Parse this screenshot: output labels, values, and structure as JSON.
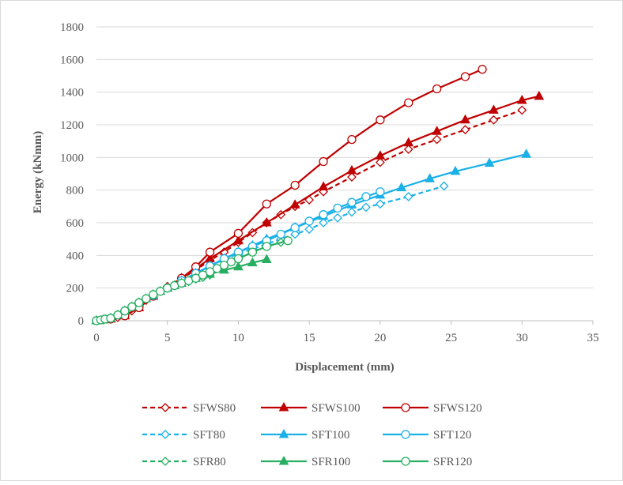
{
  "chart_data": {
    "type": "line",
    "xlabel": "Displacement (mm)",
    "ylabel": "Energy (kNmm)",
    "xlim": [
      0,
      35
    ],
    "ylim": [
      0,
      1800
    ],
    "xticks": [
      0,
      5,
      10,
      15,
      20,
      25,
      30,
      35
    ],
    "yticks": [
      0,
      200,
      400,
      600,
      800,
      1000,
      1200,
      1400,
      1600,
      1800
    ],
    "grid": "horizontal",
    "legend_position": "bottom",
    "series": [
      {
        "name": "SFWS80",
        "color": "#C00000",
        "dash": "dashed",
        "marker": "diamond",
        "x": [
          0,
          0.5,
          1,
          1.5,
          2,
          2.5,
          3,
          3.5,
          4,
          5,
          6,
          7,
          8,
          9,
          10,
          11,
          12,
          13,
          14,
          15,
          16,
          18,
          20,
          22,
          24,
          26,
          28,
          30
        ],
        "y": [
          0,
          5,
          12,
          20,
          35,
          60,
          90,
          125,
          160,
          210,
          260,
          310,
          370,
          420,
          480,
          540,
          600,
          650,
          700,
          740,
          790,
          880,
          970,
          1050,
          1110,
          1170,
          1230,
          1290
        ]
      },
      {
        "name": "SFWS100",
        "color": "#C00000",
        "dash": "solid",
        "marker": "triangle",
        "x": [
          0,
          1,
          2,
          3,
          4,
          5,
          6,
          7,
          8,
          10,
          12,
          14,
          16,
          18,
          20,
          22,
          24,
          26,
          28,
          30,
          31.2
        ],
        "y": [
          0,
          10,
          30,
          80,
          150,
          200,
          260,
          320,
          380,
          490,
          600,
          710,
          820,
          920,
          1010,
          1090,
          1160,
          1230,
          1290,
          1350,
          1375
        ]
      },
      {
        "name": "SFWS120",
        "color": "#C00000",
        "dash": "solid",
        "marker": "circle",
        "x": [
          0,
          1,
          2,
          3,
          4,
          5,
          6,
          7,
          8,
          10,
          12,
          14,
          16,
          18,
          20,
          22,
          24,
          26,
          27.2
        ],
        "y": [
          0,
          10,
          30,
          80,
          150,
          200,
          260,
          330,
          420,
          535,
          715,
          830,
          975,
          1110,
          1230,
          1335,
          1420,
          1495,
          1540
        ]
      },
      {
        "name": "SFT80",
        "color": "#1AB0E8",
        "dash": "dashed",
        "marker": "diamond",
        "x": [
          0,
          1,
          2,
          3,
          4,
          5,
          6,
          7,
          8,
          9,
          10,
          11,
          12,
          13,
          14,
          15,
          16,
          17,
          18,
          19,
          20,
          22,
          24.5
        ],
        "y": [
          0,
          15,
          60,
          110,
          155,
          200,
          245,
          290,
          335,
          375,
          410,
          440,
          470,
          500,
          530,
          560,
          600,
          630,
          665,
          695,
          715,
          760,
          825
        ]
      },
      {
        "name": "SFT100",
        "color": "#1AB0E8",
        "dash": "solid",
        "marker": "triangle",
        "x": [
          0,
          1,
          2,
          3,
          4,
          5,
          6,
          7,
          8,
          9,
          10,
          11,
          12,
          14,
          16,
          18,
          20,
          21.5,
          23.5,
          25.3,
          27.7,
          30.3
        ],
        "y": [
          0,
          15,
          60,
          110,
          155,
          200,
          245,
          290,
          335,
          380,
          420,
          460,
          500,
          570,
          640,
          710,
          770,
          815,
          870,
          915,
          965,
          1020
        ]
      },
      {
        "name": "SFT120",
        "color": "#1AB0E8",
        "dash": "solid",
        "marker": "circle",
        "x": [
          0,
          1,
          2,
          3,
          4,
          5,
          6,
          7,
          8,
          9,
          10,
          11,
          12,
          13,
          14,
          15,
          16,
          17,
          18,
          19,
          20
        ],
        "y": [
          0,
          15,
          60,
          110,
          155,
          200,
          245,
          290,
          335,
          380,
          420,
          455,
          490,
          530,
          570,
          610,
          650,
          690,
          725,
          760,
          790
        ]
      },
      {
        "name": "SFR80",
        "color": "#27AE60",
        "dash": "dashed",
        "marker": "diamond",
        "x": [
          0,
          0.5,
          1,
          1.5,
          2,
          2.5,
          3,
          3.5,
          4,
          4.5,
          5,
          5.5,
          6,
          6.5,
          7,
          7.5,
          8,
          9,
          10,
          11,
          12,
          13
        ],
        "y": [
          0,
          5,
          15,
          35,
          60,
          85,
          110,
          135,
          160,
          180,
          200,
          215,
          230,
          240,
          255,
          265,
          280,
          330,
          380,
          420,
          455,
          480
        ]
      },
      {
        "name": "SFR100",
        "color": "#27AE60",
        "dash": "solid",
        "marker": "triangle",
        "x": [
          0,
          0.5,
          1,
          1.5,
          2,
          2.5,
          3,
          3.5,
          4,
          4.5,
          5,
          5.5,
          6,
          7,
          8,
          9,
          10,
          11,
          12
        ],
        "y": [
          0,
          5,
          15,
          35,
          60,
          85,
          110,
          135,
          160,
          180,
          200,
          215,
          230,
          260,
          285,
          310,
          330,
          355,
          375
        ]
      },
      {
        "name": "SFR120",
        "color": "#27AE60",
        "dash": "solid",
        "marker": "circle",
        "x": [
          0,
          0.3,
          0.6,
          1,
          1.5,
          2,
          2.5,
          3,
          3.5,
          4,
          4.5,
          5,
          5.5,
          6,
          6.5,
          7,
          7.5,
          8,
          8.5,
          9,
          9.5,
          10,
          11,
          12,
          13.5
        ],
        "y": [
          0,
          5,
          10,
          15,
          35,
          60,
          85,
          110,
          135,
          160,
          180,
          200,
          215,
          230,
          245,
          260,
          280,
          300,
          320,
          340,
          360,
          380,
          420,
          455,
          490
        ]
      }
    ]
  }
}
